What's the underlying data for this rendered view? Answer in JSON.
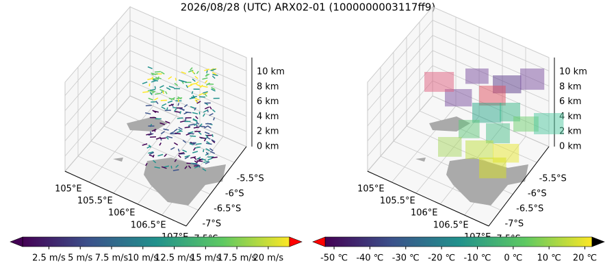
{
  "title": "2026/08/28 (UTC) ARX02-01 (1000000003117ff9)",
  "panels": [
    {
      "x_ticks": [
        "105°E",
        "105.5°E",
        "106°E",
        "106.5°E",
        "107°E"
      ],
      "y_ticks": [
        "-5.5°S",
        "-6°S",
        "-6.5°S",
        "-7°S",
        "-7.5°S"
      ],
      "z_ticks": [
        "10 km",
        "8 km",
        "6 km",
        "4 km",
        "2 km",
        "0 km"
      ],
      "colorbar": {
        "lim": [
          0.4,
          21.7
        ],
        "ticks": [
          {
            "value": 2.5,
            "label": "2.5 m/s"
          },
          {
            "value": 5,
            "label": "5 m/s"
          },
          {
            "value": 7.5,
            "label": "7.5 m/s"
          },
          {
            "value": 10,
            "label": "10 m/s"
          },
          {
            "value": 12.5,
            "label": "12.5 m/s"
          },
          {
            "value": 15,
            "label": "15 m/s"
          },
          {
            "value": 17.5,
            "label": "17.5 m/s"
          },
          {
            "value": 20,
            "label": "20 m/s"
          }
        ]
      }
    },
    {
      "x_ticks": [
        "105°E",
        "105.5°E",
        "106°E",
        "106.5°E",
        "107°E"
      ],
      "y_ticks": [
        "-5.5°S",
        "-6°S",
        "-6.5°S",
        "-7°S",
        "-7.5°S"
      ],
      "z_ticks": [
        "10 km",
        "8 km",
        "6 km",
        "4 km",
        "2 km",
        "0 km"
      ],
      "colorbar": {
        "lim": [
          -52.5,
          22
        ],
        "ticks": [
          {
            "value": -50,
            "label": "-50 ℃"
          },
          {
            "value": -40,
            "label": "-40 ℃"
          },
          {
            "value": -30,
            "label": "-30 ℃"
          },
          {
            "value": -20,
            "label": "-20 ℃"
          },
          {
            "value": -10,
            "label": "-10 ℃"
          },
          {
            "value": 0,
            "label": "0 ℃"
          },
          {
            "value": 10,
            "label": "10 ℃"
          },
          {
            "value": 20,
            "label": "20 ℃"
          }
        ]
      }
    }
  ]
}
